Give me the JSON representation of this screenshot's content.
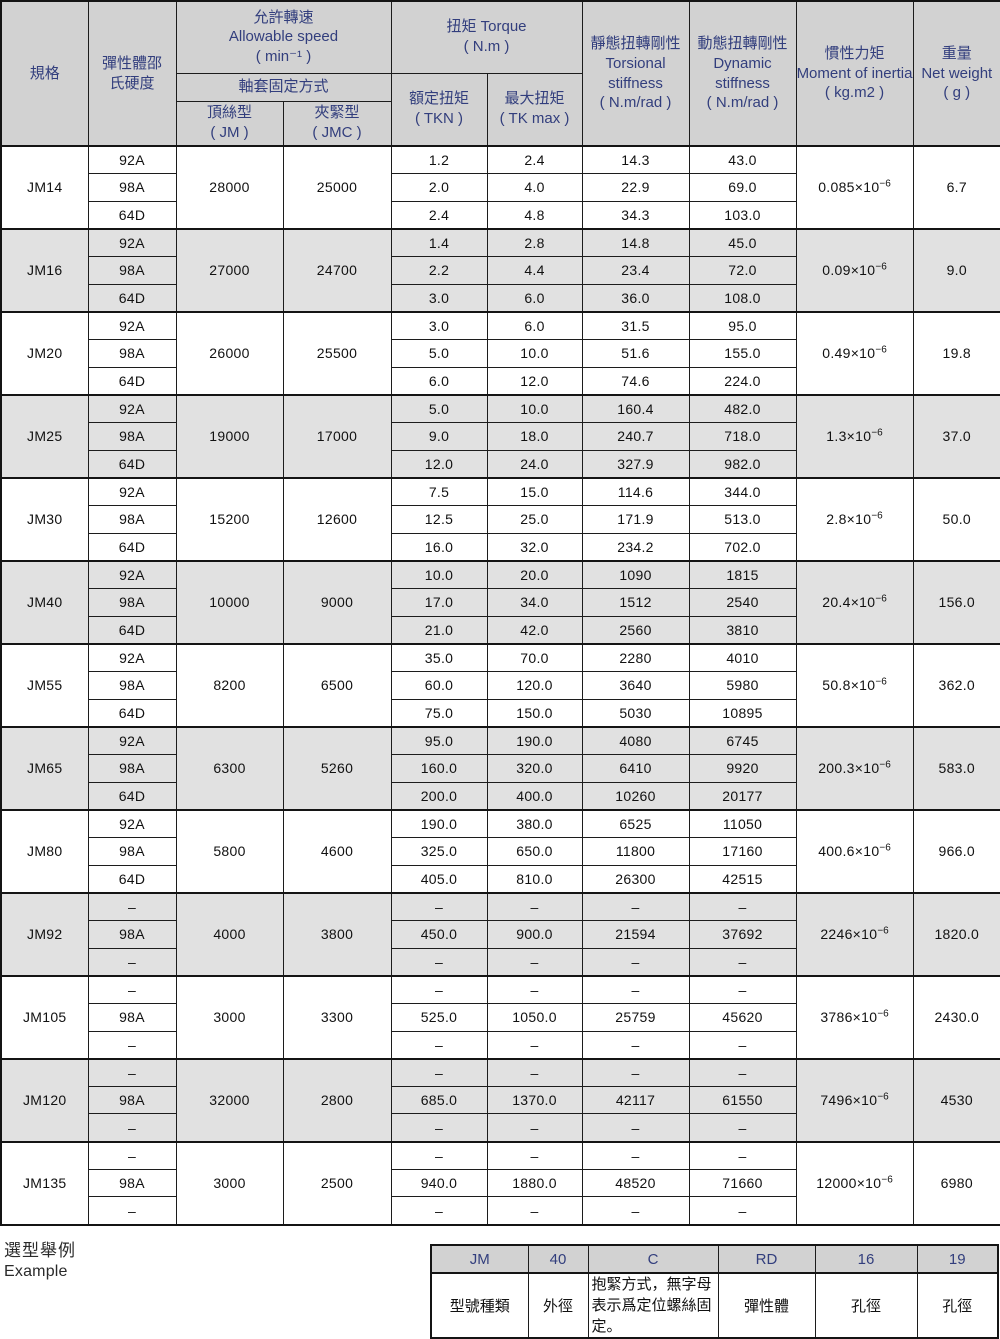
{
  "colors": {
    "header_bg": "#d2d2d2",
    "header_text": "#323e7d",
    "alt_row_bg": "#e1e1e1",
    "border": "#1c1c1c",
    "text": "#111111"
  },
  "header": {
    "spec": "規格",
    "hardness": "彈性體邵氏硬度",
    "speed": {
      "zh": "允許轉速",
      "en": "Allowable speed",
      "unit": "( min⁻¹ )"
    },
    "fixing": "軸套固定方式",
    "set_screw": {
      "zh": "頂絲型",
      "unit": "( JM )"
    },
    "clamp": {
      "zh": "夾緊型",
      "unit": "( JMC )"
    },
    "torque": {
      "zh": "扭矩  Torque",
      "unit": "( N.m )"
    },
    "rated_torque": {
      "zh": "額定扭矩",
      "unit": "( TKN )"
    },
    "max_torque": {
      "zh": "最大扭矩",
      "unit": "( TK max )"
    },
    "static_stiffness": {
      "zh": "靜態扭轉剛性",
      "en": "Torsional stiffness",
      "unit": "( N.m/rad )"
    },
    "dynamic_stiffness": {
      "zh": "動態扭轉剛性",
      "en": "Dynamic stiffness",
      "unit": "( N.m/rad )"
    },
    "inertia": {
      "zh": "慣性力矩",
      "en": "Moment of inertia",
      "unit": "( kg.m2 )"
    },
    "weight": {
      "zh": "重量",
      "en": "Net weight",
      "unit": "( g )"
    }
  },
  "groups": [
    {
      "spec": "JM14",
      "hardness": [
        "92A",
        "98A",
        "64D"
      ],
      "speed_jm": "28000",
      "speed_jmc": "25000",
      "tkn": [
        "1.2",
        "2.0",
        "2.4"
      ],
      "tkmax": [
        "2.4",
        "4.0",
        "4.8"
      ],
      "static": [
        "14.3",
        "22.9",
        "34.3"
      ],
      "dynamic": [
        "43.0",
        "69.0",
        "103.0"
      ],
      "inertia": "0.085×10",
      "inertia_exp": "−6",
      "weight": "6.7"
    },
    {
      "spec": "JM16",
      "hardness": [
        "92A",
        "98A",
        "64D"
      ],
      "speed_jm": "27000",
      "speed_jmc": "24700",
      "tkn": [
        "1.4",
        "2.2",
        "3.0"
      ],
      "tkmax": [
        "2.8",
        "4.4",
        "6.0"
      ],
      "static": [
        "14.8",
        "23.4",
        "36.0"
      ],
      "dynamic": [
        "45.0",
        "72.0",
        "108.0"
      ],
      "inertia": "0.09×10",
      "inertia_exp": "−6",
      "weight": "9.0"
    },
    {
      "spec": "JM20",
      "hardness": [
        "92A",
        "98A",
        "64D"
      ],
      "speed_jm": "26000",
      "speed_jmc": "25500",
      "tkn": [
        "3.0",
        "5.0",
        "6.0"
      ],
      "tkmax": [
        "6.0",
        "10.0",
        "12.0"
      ],
      "static": [
        "31.5",
        "51.6",
        "74.6"
      ],
      "dynamic": [
        "95.0",
        "155.0",
        "224.0"
      ],
      "inertia": "0.49×10",
      "inertia_exp": "−6",
      "weight": "19.8"
    },
    {
      "spec": "JM25",
      "hardness": [
        "92A",
        "98A",
        "64D"
      ],
      "speed_jm": "19000",
      "speed_jmc": "17000",
      "tkn": [
        "5.0",
        "9.0",
        "12.0"
      ],
      "tkmax": [
        "10.0",
        "18.0",
        "24.0"
      ],
      "static": [
        "160.4",
        "240.7",
        "327.9"
      ],
      "dynamic": [
        "482.0",
        "718.0",
        "982.0"
      ],
      "inertia": "1.3×10",
      "inertia_exp": "−6",
      "weight": "37.0"
    },
    {
      "spec": "JM30",
      "hardness": [
        "92A",
        "98A",
        "64D"
      ],
      "speed_jm": "15200",
      "speed_jmc": "12600",
      "tkn": [
        "7.5",
        "12.5",
        "16.0"
      ],
      "tkmax": [
        "15.0",
        "25.0",
        "32.0"
      ],
      "static": [
        "114.6",
        "171.9",
        "234.2"
      ],
      "dynamic": [
        "344.0",
        "513.0",
        "702.0"
      ],
      "inertia": "2.8×10",
      "inertia_exp": "−6",
      "weight": "50.0"
    },
    {
      "spec": "JM40",
      "hardness": [
        "92A",
        "98A",
        "64D"
      ],
      "speed_jm": "10000",
      "speed_jmc": "9000",
      "tkn": [
        "10.0",
        "17.0",
        "21.0"
      ],
      "tkmax": [
        "20.0",
        "34.0",
        "42.0"
      ],
      "static": [
        "1090",
        "1512",
        "2560"
      ],
      "dynamic": [
        "1815",
        "2540",
        "3810"
      ],
      "inertia": "20.4×10",
      "inertia_exp": "−6",
      "weight": "156.0"
    },
    {
      "spec": "JM55",
      "hardness": [
        "92A",
        "98A",
        "64D"
      ],
      "speed_jm": "8200",
      "speed_jmc": "6500",
      "tkn": [
        "35.0",
        "60.0",
        "75.0"
      ],
      "tkmax": [
        "70.0",
        "120.0",
        "150.0"
      ],
      "static": [
        "2280",
        "3640",
        "5030"
      ],
      "dynamic": [
        "4010",
        "5980",
        "10895"
      ],
      "inertia": "50.8×10",
      "inertia_exp": "−6",
      "weight": "362.0"
    },
    {
      "spec": "JM65",
      "hardness": [
        "92A",
        "98A",
        "64D"
      ],
      "speed_jm": "6300",
      "speed_jmc": "5260",
      "tkn": [
        "95.0",
        "160.0",
        "200.0"
      ],
      "tkmax": [
        "190.0",
        "320.0",
        "400.0"
      ],
      "static": [
        "4080",
        "6410",
        "10260"
      ],
      "dynamic": [
        "6745",
        "9920",
        "20177"
      ],
      "inertia": "200.3×10",
      "inertia_exp": "−6",
      "weight": "583.0"
    },
    {
      "spec": "JM80",
      "hardness": [
        "92A",
        "98A",
        "64D"
      ],
      "speed_jm": "5800",
      "speed_jmc": "4600",
      "tkn": [
        "190.0",
        "325.0",
        "405.0"
      ],
      "tkmax": [
        "380.0",
        "650.0",
        "810.0"
      ],
      "static": [
        "6525",
        "11800",
        "26300"
      ],
      "dynamic": [
        "11050",
        "17160",
        "42515"
      ],
      "inertia": "400.6×10",
      "inertia_exp": "−6",
      "weight": "966.0"
    },
    {
      "spec": "JM92",
      "hardness": [
        "–",
        "98A",
        "–"
      ],
      "speed_jm": "4000",
      "speed_jmc": "3800",
      "tkn": [
        "–",
        "450.0",
        "–"
      ],
      "tkmax": [
        "–",
        "900.0",
        "–"
      ],
      "static": [
        "–",
        "21594",
        "–"
      ],
      "dynamic": [
        "–",
        "37692",
        "–"
      ],
      "inertia": "2246×10",
      "inertia_exp": "−6",
      "weight": "1820.0"
    },
    {
      "spec": "JM105",
      "hardness": [
        "–",
        "98A",
        "–"
      ],
      "speed_jm": "3000",
      "speed_jmc": "3300",
      "tkn": [
        "–",
        "525.0",
        "–"
      ],
      "tkmax": [
        "–",
        "1050.0",
        "–"
      ],
      "static": [
        "–",
        "25759",
        "–"
      ],
      "dynamic": [
        "–",
        "45620",
        "–"
      ],
      "inertia": "3786×10",
      "inertia_exp": "−6",
      "weight": "2430.0"
    },
    {
      "spec": "JM120",
      "hardness": [
        "–",
        "98A",
        "–"
      ],
      "speed_jm": "32000",
      "speed_jmc": "2800",
      "tkn": [
        "–",
        "685.0",
        "–"
      ],
      "tkmax": [
        "–",
        "1370.0",
        "–"
      ],
      "static": [
        "–",
        "42117",
        "–"
      ],
      "dynamic": [
        "–",
        "61550",
        "–"
      ],
      "inertia": "7496×10",
      "inertia_exp": "−6",
      "weight": "4530"
    },
    {
      "spec": "JM135",
      "hardness": [
        "–",
        "98A",
        "–"
      ],
      "speed_jm": "3000",
      "speed_jmc": "2500",
      "tkn": [
        "–",
        "940.0",
        "–"
      ],
      "tkmax": [
        "–",
        "1880.0",
        "–"
      ],
      "static": [
        "–",
        "48520",
        "–"
      ],
      "dynamic": [
        "–",
        "71660",
        "–"
      ],
      "inertia": "12000×10",
      "inertia_exp": "−6",
      "weight": "6980"
    }
  ],
  "example": {
    "label_zh": "選型舉例",
    "label_en": "Example",
    "items": [
      {
        "code": "JM",
        "desc": "型號種類"
      },
      {
        "code": "40",
        "desc": "外徑"
      },
      {
        "code": "C",
        "desc": "抱緊方式，無字母表示爲定位螺絲固定。"
      },
      {
        "code": "RD",
        "desc": "彈性體"
      },
      {
        "code": "16",
        "desc": "孔徑"
      },
      {
        "code": "19",
        "desc": "孔徑"
      }
    ]
  }
}
